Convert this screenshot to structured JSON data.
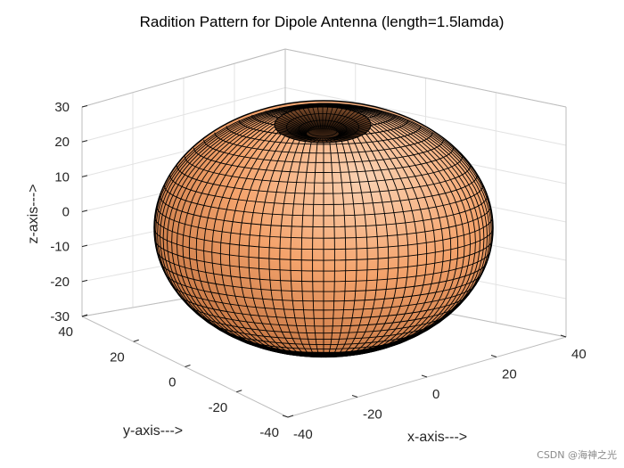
{
  "chart_data": {
    "type": "surface3d",
    "title": "Radition Pattern for Dipole Antenna (length=1.5lamda)",
    "xlabel": "x-axis--->",
    "ylabel": "y-axis--->",
    "zlabel": "z-axis--->",
    "xlim": [
      -40,
      40
    ],
    "ylim": [
      -40,
      40
    ],
    "zlim": [
      -30,
      30
    ],
    "xticks": [
      -40,
      -20,
      0,
      20,
      40
    ],
    "yticks": [
      -40,
      -20,
      0,
      20,
      40
    ],
    "zticks": [
      30,
      20,
      10,
      0,
      -10,
      -20,
      -30
    ],
    "grid": true,
    "view": "3d-isometric",
    "surface": {
      "shape": "toroidal radiation pattern",
      "horizontal_radius": 37,
      "vertical_radius": 28,
      "color": "#f5a26c",
      "edge_color": "#000000"
    }
  },
  "watermark": "CSDN @海神之光"
}
